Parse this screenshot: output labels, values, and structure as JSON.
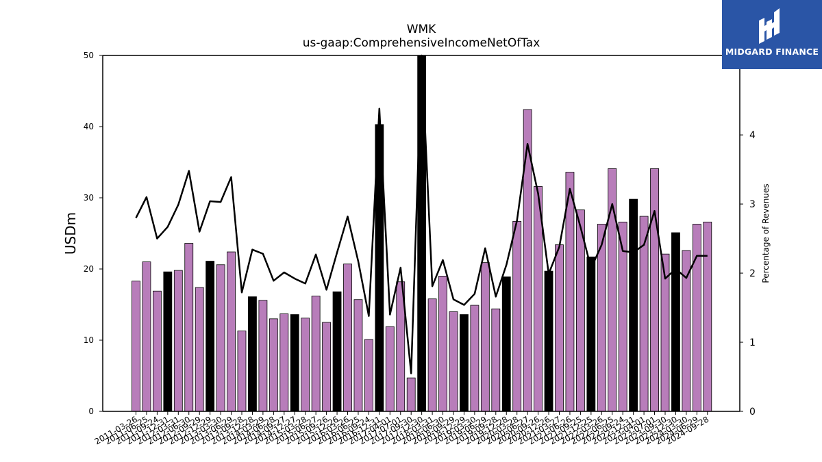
{
  "brand": {
    "name": "MIDGARD FINANCE",
    "bg_color": "#2a55a6",
    "icon": "midgard-logo-icon"
  },
  "chart_data": {
    "type": "bar",
    "title": "WMK",
    "subtitle": "us-gaap:ComprehensiveIncomeNetOfTax",
    "ylabel": "USDm",
    "y2label": "Percentage of Revenues",
    "ylim": [
      0,
      50
    ],
    "y2lim": [
      0,
      5.15
    ],
    "yticks": [
      0,
      10,
      20,
      30,
      40,
      50
    ],
    "y2ticks": [
      0,
      1,
      2,
      3,
      4
    ],
    "grid": false,
    "colors": {
      "bar": "#b87dba",
      "bar_q4": "#000000",
      "line": "#000000"
    },
    "categories": [
      "2011-03-26",
      "2011-06-25",
      "2011-09-24",
      "2011-12-31",
      "2012-03-31",
      "2012-06-30",
      "2012-09-29",
      "2012-12-29",
      "2013-03-30",
      "2013-06-29",
      "2013-09-28",
      "2013-12-28",
      "2014-03-29",
      "2014-06-28",
      "2014-09-27",
      "2014-12-27",
      "2015-03-28",
      "2015-06-27",
      "2015-09-26",
      "2015-12-26",
      "2016-03-26",
      "2016-06-25",
      "2016-09-24",
      "2016-12-31",
      "2017-04-01",
      "2017-07-01",
      "2017-09-30",
      "2017-12-30",
      "2018-03-31",
      "2018-06-30",
      "2018-09-29",
      "2018-12-29",
      "2019-03-30",
      "2019-06-29",
      "2019-09-28",
      "2019-12-28",
      "2020-03-28",
      "2020-06-27",
      "2020-09-26",
      "2020-12-26",
      "2021-03-27",
      "2021-06-26",
      "2021-09-25",
      "2021-12-25",
      "2022-03-26",
      "2022-06-25",
      "2022-09-24",
      "2022-12-31",
      "2023-04-01",
      "2023-07-01",
      "2023-09-30",
      "2023-12-30",
      "2024-03-30",
      "2024-06-29",
      "2024-09-28"
    ],
    "values": [
      18.3,
      21.0,
      16.9,
      19.6,
      19.8,
      23.6,
      17.4,
      21.1,
      20.6,
      22.4,
      11.3,
      16.1,
      15.6,
      13.0,
      13.7,
      13.6,
      13.1,
      16.2,
      12.5,
      16.8,
      20.7,
      15.7,
      10.1,
      40.3,
      11.9,
      18.2,
      4.7,
      50.0,
      15.8,
      19.0,
      14.0,
      13.6,
      14.9,
      20.9,
      14.4,
      18.9,
      26.7,
      42.4,
      31.6,
      19.7,
      23.4,
      33.6,
      28.3,
      21.7,
      26.3,
      34.1,
      26.6,
      29.8,
      27.4,
      34.1,
      22.1,
      25.1,
      22.6,
      26.3,
      26.6
    ],
    "highlight_black": [
      false,
      false,
      false,
      true,
      false,
      false,
      false,
      true,
      false,
      false,
      false,
      true,
      false,
      false,
      false,
      true,
      false,
      false,
      false,
      true,
      false,
      false,
      false,
      true,
      false,
      false,
      false,
      true,
      false,
      false,
      false,
      true,
      false,
      false,
      false,
      true,
      false,
      false,
      false,
      true,
      false,
      false,
      false,
      true,
      false,
      false,
      false,
      true,
      false,
      false,
      false,
      true,
      false,
      false,
      false
    ],
    "series": [
      {
        "axis": "y2",
        "type": "line",
        "values": [
          2.8,
          3.1,
          2.5,
          2.67,
          2.99,
          3.48,
          2.6,
          3.04,
          3.03,
          3.39,
          1.72,
          2.34,
          2.28,
          1.89,
          2.01,
          1.92,
          1.85,
          2.27,
          1.76,
          2.3,
          2.82,
          2.17,
          1.38,
          4.38,
          1.4,
          2.08,
          0.55,
          5.15,
          1.81,
          2.19,
          1.62,
          1.54,
          1.7,
          2.36,
          1.66,
          2.12,
          2.76,
          3.87,
          3.15,
          1.99,
          2.38,
          3.22,
          2.67,
          2.07,
          2.41,
          3.0,
          2.32,
          2.3,
          2.41,
          2.9,
          1.92,
          2.06,
          1.93,
          2.25,
          2.25
        ]
      }
    ]
  }
}
